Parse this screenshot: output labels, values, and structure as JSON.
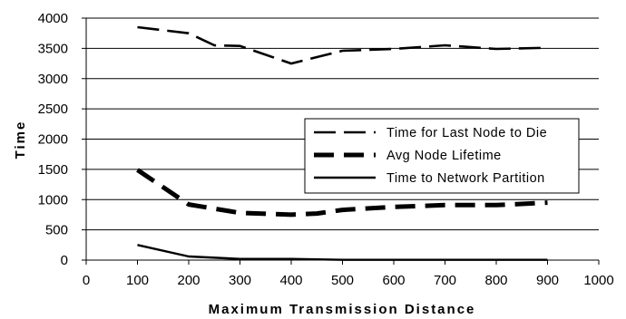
{
  "chart_data": {
    "type": "line",
    "title": "",
    "xlabel": "Maximum Transmission Distance",
    "ylabel": "Time",
    "xlim": [
      0,
      1000
    ],
    "ylim": [
      0,
      4000
    ],
    "xticks": [
      0,
      100,
      200,
      300,
      400,
      500,
      600,
      700,
      800,
      900,
      1000
    ],
    "yticks": [
      0,
      500,
      1000,
      1500,
      2000,
      2500,
      3000,
      3500,
      4000
    ],
    "grid": "horizontal",
    "legend_position": "right",
    "series": [
      {
        "name": "Time for Last Node to Die",
        "style": "dashed",
        "x": [
          100,
          200,
          250,
          300,
          400,
          500,
          600,
          700,
          800,
          900
        ],
        "y": [
          3850,
          3750,
          3550,
          3540,
          3250,
          3460,
          3490,
          3550,
          3490,
          3510
        ]
      },
      {
        "name": "Avg Node Lifetime",
        "style": "thick-dashed",
        "x": [
          100,
          200,
          300,
          400,
          450,
          500,
          600,
          700,
          800,
          900
        ],
        "y": [
          1490,
          920,
          780,
          750,
          770,
          830,
          880,
          910,
          910,
          950
        ]
      },
      {
        "name": "Time to Network Partition",
        "style": "solid",
        "x": [
          100,
          200,
          300,
          400,
          500,
          600,
          700,
          800,
          900
        ],
        "y": [
          250,
          60,
          20,
          20,
          5,
          5,
          5,
          5,
          5
        ]
      }
    ]
  }
}
